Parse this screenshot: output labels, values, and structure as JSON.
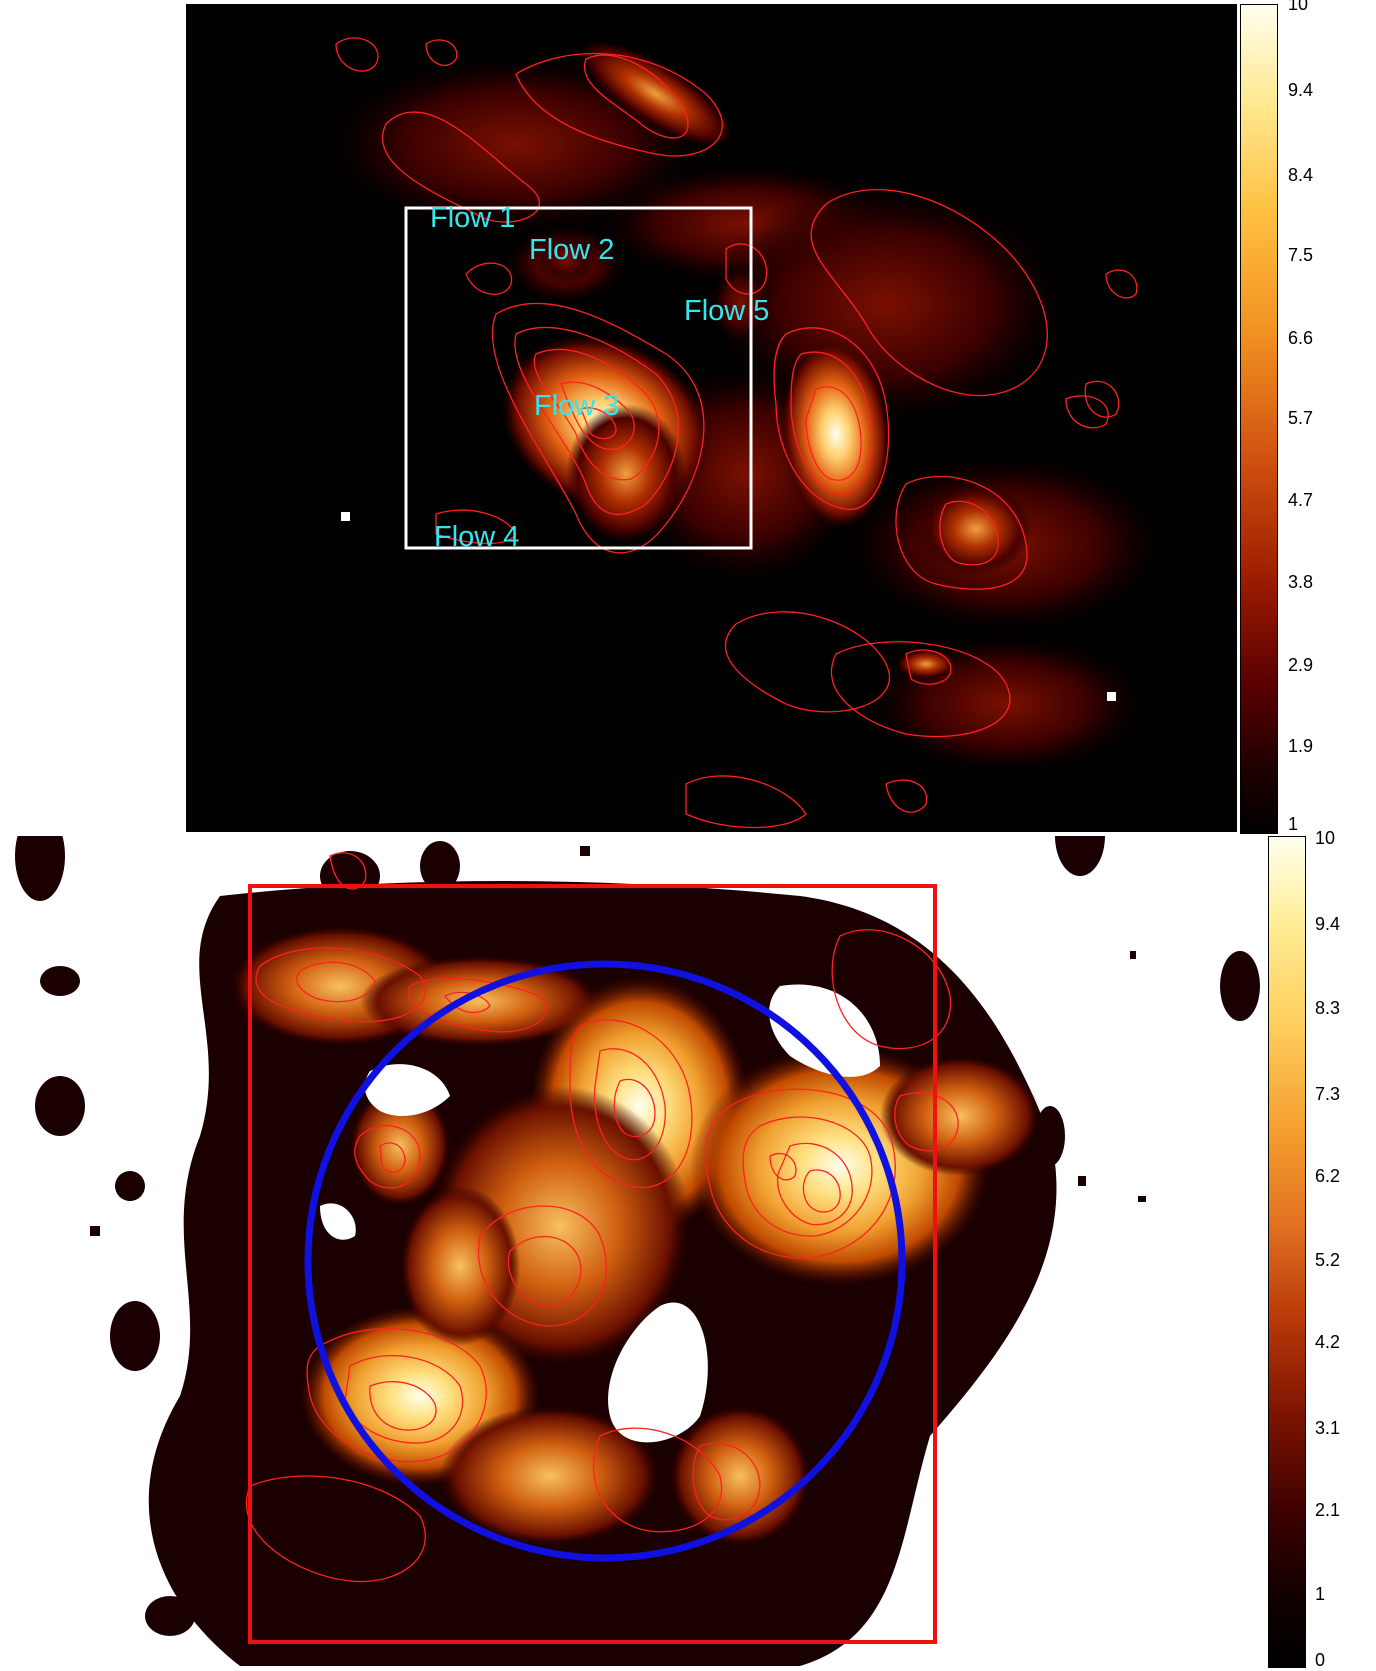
{
  "top_panel": {
    "labels": {
      "flow1": "Flow 1",
      "flow2": "Flow 2",
      "flow3": "Flow 3",
      "flow4": "Flow 4",
      "flow5": "Flow 5"
    },
    "colorbar_ticks": [
      "10",
      "9.4",
      "8.4",
      "7.5",
      "6.6",
      "5.7",
      "4.7",
      "3.8",
      "2.9",
      "1.9",
      "1"
    ],
    "box_color": "#ffffff",
    "contour_color": "#ff2020",
    "label_color": "#33e6ee",
    "background": "#000000"
  },
  "bottom_panel": {
    "colorbar_ticks": [
      "10",
      "9.4",
      "8.3",
      "7.3",
      "6.2",
      "5.2",
      "4.2",
      "3.1",
      "2.1",
      "1",
      "0"
    ],
    "box_color": "#ee1111",
    "circle_color": "#1010e0",
    "contour_color": "#ff2020",
    "background": "#ffffff"
  },
  "colormap": "afmhot",
  "colors": {
    "cmap_low": "#000000",
    "cmap_mid_low": "#6a0000",
    "cmap_mid": "#e06010",
    "cmap_mid_high": "#ffc040",
    "cmap_high": "#ffffee"
  }
}
